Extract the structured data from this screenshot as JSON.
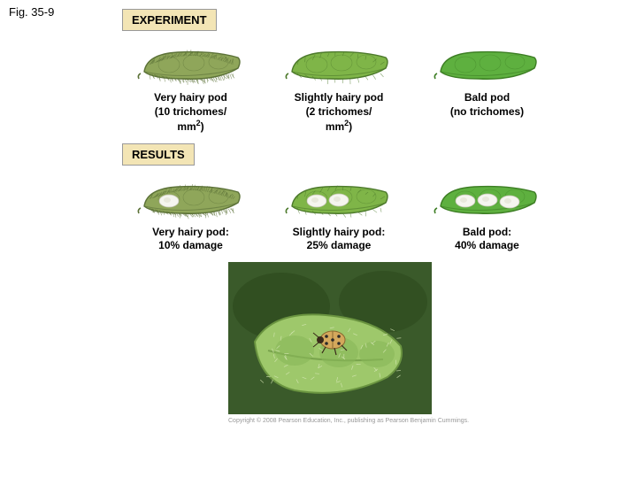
{
  "figure_label": "Fig. 35-9",
  "experiment": {
    "header": "EXPERIMENT",
    "pods": [
      {
        "label_l1": "Very hairy pod",
        "label_l2": "(10 trichomes/",
        "label_l3": "mm²)",
        "fill": "#8fa65a",
        "stroke": "#5c7238",
        "hair_density": 10,
        "damaged": false
      },
      {
        "label_l1": "Slightly hairy pod",
        "label_l2": "(2 trichomes/",
        "label_l3": "mm²)",
        "fill": "#7fb548",
        "stroke": "#4d7a2c",
        "hair_density": 2,
        "damaged": false
      },
      {
        "label_l1": "Bald pod",
        "label_l2": "(no trichomes)",
        "label_l3": "",
        "fill": "#5eb03f",
        "stroke": "#3d7e24",
        "hair_density": 0,
        "damaged": false
      }
    ]
  },
  "results": {
    "header": "RESULTS",
    "pods": [
      {
        "label_l1": "Very hairy pod:",
        "label_l2": "10% damage",
        "fill": "#8fa65a",
        "stroke": "#5c7238",
        "hair_density": 10,
        "damaged": true,
        "damage_spots": 1
      },
      {
        "label_l1": "Slightly hairy pod:",
        "label_l2": "25% damage",
        "fill": "#7fb548",
        "stroke": "#4d7a2c",
        "hair_density": 2,
        "damaged": true,
        "damage_spots": 2
      },
      {
        "label_l1": "Bald pod:",
        "label_l2": "40% damage",
        "fill": "#5eb03f",
        "stroke": "#3d7e24",
        "hair_density": 0,
        "damaged": true,
        "damage_spots": 3
      }
    ]
  },
  "photo": {
    "bg": "#3a5a2a",
    "pod_color": "#9ec86b",
    "beetle_body": "#d4a85c",
    "beetle_spot": "#2a2a2a"
  },
  "copyright": "Copyright © 2008 Pearson Education, Inc., publishing as Pearson Benjamin Cummings."
}
